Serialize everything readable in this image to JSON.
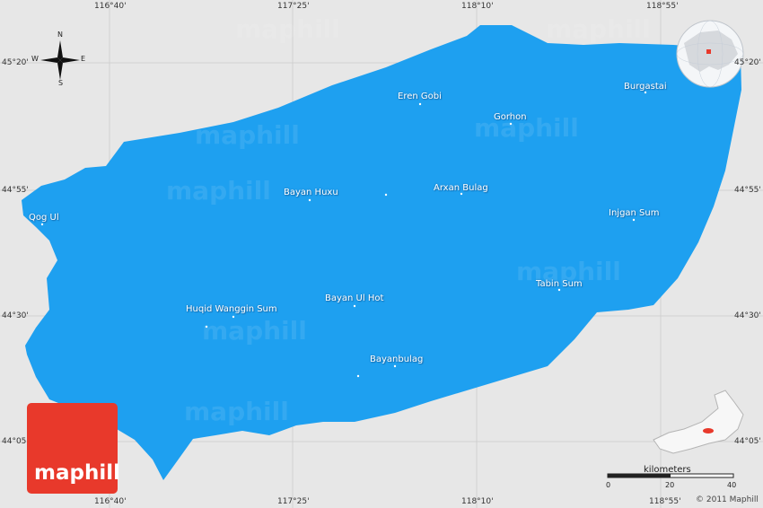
{
  "map": {
    "colors": {
      "background": "#e7e7e7",
      "region_fill": "#1ea0f0",
      "logo": "#e8392b"
    }
  },
  "grid_labels": {
    "top": [
      "116°40'",
      "117°25'",
      "118°10'",
      "118°55'"
    ],
    "bottom": [
      "116°40'",
      "117°25'",
      "118°10'",
      "118°55'"
    ],
    "left": [
      "45°20'",
      "44°55'",
      "44°30'",
      "44°05'"
    ],
    "right": [
      "45°20'",
      "44°55'",
      "44°30'",
      "44°05'"
    ]
  },
  "compass": {
    "n": "N",
    "s": "S",
    "e": "E",
    "w": "W"
  },
  "places": [
    "Eren Gobi",
    "Burgastai",
    "Gorhon",
    "Bayan Huxu",
    "Arxan Bulag",
    "Qog Ul",
    "Injgan Sum",
    "Tabin Sum",
    "Bayan Ul Hot",
    "Huqid Wanggin Sum",
    "Bayanbulag"
  ],
  "watermark": "maphill",
  "logo": {
    "text": "maphill"
  },
  "scale": {
    "title": "kilometers",
    "ticks": [
      "0",
      "20",
      "40"
    ]
  },
  "copyright": "© 2011 Maphill"
}
